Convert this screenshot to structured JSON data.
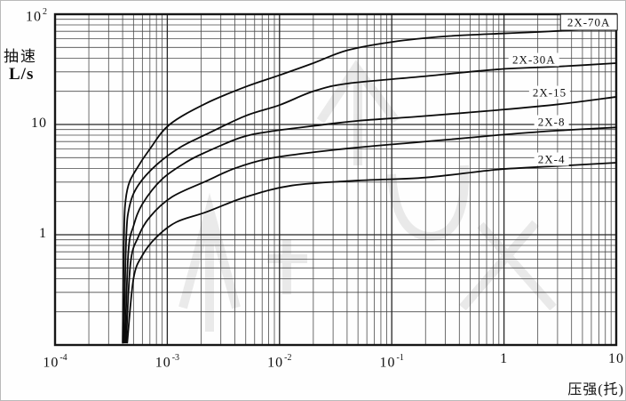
{
  "chart_data": {
    "type": "line",
    "title": "",
    "x_axis": {
      "label": "压强(托)",
      "scale": "log",
      "min": 0.0001,
      "max": 10,
      "ticks": [
        {
          "text": "10",
          "sup": "-4",
          "value": 0.0001
        },
        {
          "text": "10",
          "sup": "-3",
          "value": 0.001
        },
        {
          "text": "10",
          "sup": "-2",
          "value": 0.01
        },
        {
          "text": "10",
          "sup": "-1",
          "value": 0.1
        },
        {
          "text": "1",
          "sup": "",
          "value": 1
        },
        {
          "text": "10",
          "sup": "",
          "value": 10
        }
      ]
    },
    "y_axis": {
      "name": "抽速",
      "unit": "L/s",
      "scale": "log",
      "min": 0.1,
      "max": 100,
      "ticks": [
        {
          "text": "10",
          "sup": "2",
          "value": 100
        },
        {
          "text": "10",
          "sup": "",
          "value": 10
        },
        {
          "text": "1",
          "sup": "",
          "value": 1
        }
      ]
    },
    "grid": "log major+minor, both axes",
    "legend_position": "labels-on-chart-right",
    "colors": {
      "curve": "#0b0b0b",
      "grid_minor": "#4a4a4a",
      "grid_major": "#262626",
      "border": "#161616",
      "watermark": "#d9d9d9"
    },
    "series": [
      {
        "name": "2X-70A",
        "boxed": true,
        "label_at": {
          "p": 5.7,
          "s": 85
        },
        "points": [
          [
            0.0004,
            0.105
          ],
          [
            0.00041,
            0.8
          ],
          [
            0.00042,
            1.8
          ],
          [
            0.00045,
            2.8
          ],
          [
            0.00052,
            3.8
          ],
          [
            0.0007,
            6
          ],
          [
            0.00105,
            10
          ],
          [
            0.0022,
            15.5
          ],
          [
            0.005,
            22
          ],
          [
            0.01,
            28
          ],
          [
            0.02,
            36
          ],
          [
            0.04,
            47
          ],
          [
            0.1,
            56
          ],
          [
            0.3,
            63
          ],
          [
            1,
            67
          ],
          [
            2,
            69
          ],
          [
            10,
            75
          ]
        ]
      },
      {
        "name": "2X-30A",
        "boxed": false,
        "label_at": {
          "p": 1.85,
          "s": 39
        },
        "points": [
          [
            0.00041,
            0.105
          ],
          [
            0.00043,
            0.9
          ],
          [
            0.00046,
            1.8
          ],
          [
            0.00055,
            2.8
          ],
          [
            0.0008,
            4.3
          ],
          [
            0.0013,
            6.2
          ],
          [
            0.0022,
            8.1
          ],
          [
            0.005,
            12
          ],
          [
            0.01,
            15
          ],
          [
            0.02,
            20
          ],
          [
            0.04,
            23.5
          ],
          [
            0.17,
            27
          ],
          [
            0.87,
            31.6
          ],
          [
            3,
            33.5
          ],
          [
            10,
            36
          ]
        ]
      },
      {
        "name": "2X-15",
        "boxed": false,
        "label_at": {
          "p": 2.55,
          "s": 19.5
        },
        "points": [
          [
            0.00042,
            0.105
          ],
          [
            0.00045,
            0.7
          ],
          [
            0.0005,
            1.2
          ],
          [
            0.0006,
            1.9
          ],
          [
            0.0009,
            3.2
          ],
          [
            0.0015,
            4.6
          ],
          [
            0.0022,
            5.6
          ],
          [
            0.0045,
            7.6
          ],
          [
            0.008,
            8.6
          ],
          [
            0.02,
            9.7
          ],
          [
            0.05,
            10.8
          ],
          [
            0.17,
            11.8
          ],
          [
            0.87,
            13.5
          ],
          [
            3,
            15.2
          ],
          [
            10,
            17.8
          ]
        ]
      },
      {
        "name": "2X-8",
        "boxed": false,
        "label_at": {
          "p": 2.65,
          "s": 10.5
        },
        "points": [
          [
            0.00043,
            0.105
          ],
          [
            0.00047,
            0.55
          ],
          [
            0.00055,
            0.95
          ],
          [
            0.0007,
            1.45
          ],
          [
            0.0011,
            2.2
          ],
          [
            0.0022,
            3.05
          ],
          [
            0.004,
            4
          ],
          [
            0.008,
            4.9
          ],
          [
            0.02,
            5.6
          ],
          [
            0.06,
            6.3
          ],
          [
            0.17,
            6.9
          ],
          [
            0.5,
            7.6
          ],
          [
            1,
            8.1
          ],
          [
            3,
            8.8
          ],
          [
            10,
            9.4
          ]
        ]
      },
      {
        "name": "2X-4",
        "boxed": false,
        "label_at": {
          "p": 2.65,
          "s": 4.85
        },
        "points": [
          [
            0.00044,
            0.105
          ],
          [
            0.0005,
            0.4
          ],
          [
            0.0006,
            0.65
          ],
          [
            0.0008,
            0.95
          ],
          [
            0.0012,
            1.3
          ],
          [
            0.0022,
            1.6
          ],
          [
            0.005,
            2.2
          ],
          [
            0.013,
            2.8
          ],
          [
            0.05,
            3.1
          ],
          [
            0.2,
            3.3
          ],
          [
            0.87,
            3.9
          ],
          [
            3,
            4.2
          ],
          [
            10,
            4.5
          ]
        ]
      }
    ]
  }
}
